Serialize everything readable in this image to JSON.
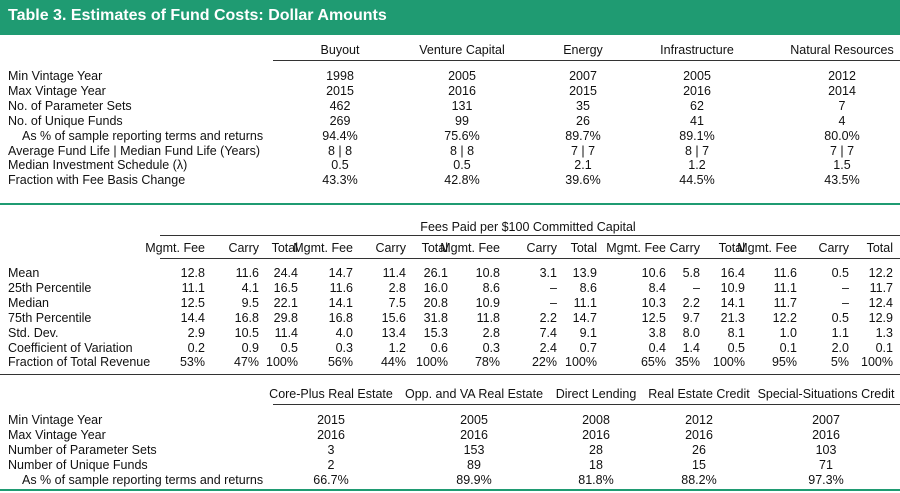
{
  "title": "Table 3.  Estimates of Fund Costs: Dollar Amounts",
  "panel1": {
    "columns": [
      "Buyout",
      "Venture Capital",
      "Energy",
      "Infrastructure",
      "Natural Resources"
    ],
    "rows": [
      {
        "label": "Min Vintage Year",
        "values": [
          "1998",
          "2005",
          "2007",
          "2005",
          "2012"
        ]
      },
      {
        "label": "Max Vintage Year",
        "values": [
          "2015",
          "2016",
          "2015",
          "2016",
          "2014"
        ]
      },
      {
        "label": "No. of Parameter Sets",
        "values": [
          "462",
          "131",
          "35",
          "62",
          "7"
        ]
      },
      {
        "label": "No. of Unique Funds",
        "values": [
          "269",
          "99",
          "26",
          "41",
          "4"
        ]
      },
      {
        "label": "As % of sample reporting terms and returns",
        "indent": true,
        "values": [
          "94.4%",
          "75.6%",
          "89.7%",
          "89.1%",
          "80.0%"
        ]
      },
      {
        "label": "Average Fund Life | Median Fund Life (Years)",
        "values": [
          "8 | 8",
          "8 | 8",
          "7 | 7",
          "8 | 7",
          "7 | 7"
        ]
      },
      {
        "label": "Median Investment Schedule (λ)",
        "values": [
          "0.5",
          "0.5",
          "2.1",
          "1.2",
          "1.5"
        ]
      },
      {
        "label": "Fraction with Fee Basis Change",
        "values": [
          "43.3%",
          "42.8%",
          "39.6%",
          "44.5%",
          "43.5%"
        ]
      }
    ]
  },
  "panel2": {
    "header": "Fees Paid per $100 Committed Capital",
    "subheaders": [
      "Mgmt. Fee",
      "Carry",
      "Total"
    ],
    "rows": [
      {
        "label": "Mean",
        "values": [
          "12.8",
          "11.6",
          "24.4",
          "14.7",
          "11.4",
          "26.1",
          "10.8",
          "3.1",
          "13.9",
          "10.6",
          "5.8",
          "16.4",
          "11.6",
          "0.5",
          "12.2"
        ]
      },
      {
        "label": "25th Percentile",
        "values": [
          "11.1",
          "4.1",
          "16.5",
          "11.6",
          "2.8",
          "16.0",
          "8.6",
          "–",
          "8.6",
          "8.4",
          "–",
          "10.9",
          "11.1",
          "–",
          "11.7"
        ]
      },
      {
        "label": "Median",
        "values": [
          "12.5",
          "9.5",
          "22.1",
          "14.1",
          "7.5",
          "20.8",
          "10.9",
          "–",
          "11.1",
          "10.3",
          "2.2",
          "14.1",
          "11.7",
          "–",
          "12.4"
        ]
      },
      {
        "label": "75th Percentile",
        "values": [
          "14.4",
          "16.8",
          "29.8",
          "16.8",
          "15.6",
          "31.8",
          "11.8",
          "2.2",
          "14.7",
          "12.5",
          "9.7",
          "21.3",
          "12.2",
          "0.5",
          "12.9"
        ]
      },
      {
        "label": "Std. Dev.",
        "values": [
          "2.9",
          "10.5",
          "11.4",
          "4.0",
          "13.4",
          "15.3",
          "2.8",
          "7.4",
          "9.1",
          "3.8",
          "8.0",
          "8.1",
          "1.0",
          "1.1",
          "1.3"
        ]
      },
      {
        "label": "Coefficient of Variation",
        "values": [
          "0.2",
          "0.9",
          "0.5",
          "0.3",
          "1.2",
          "0.6",
          "0.3",
          "2.4",
          "0.7",
          "0.4",
          "1.4",
          "0.5",
          "0.1",
          "2.0",
          "0.1"
        ]
      },
      {
        "label": "Fraction of Total Revenue",
        "values": [
          "53%",
          "47%",
          "100%",
          "56%",
          "44%",
          "100%",
          "78%",
          "22%",
          "100%",
          "65%",
          "35%",
          "100%",
          "95%",
          "5%",
          "100%"
        ]
      }
    ]
  },
  "panel3": {
    "columns": [
      "Core-Plus Real Estate",
      "Opp. and VA Real Estate",
      "Direct Lending",
      "Real Estate Credit",
      "Special-Situations Credit"
    ],
    "rows": [
      {
        "label": "Min Vintage Year",
        "values": [
          "2015",
          "2005",
          "2008",
          "2012",
          "2007"
        ]
      },
      {
        "label": "Max Vintage Year",
        "values": [
          "2016",
          "2016",
          "2016",
          "2016",
          "2016"
        ]
      },
      {
        "label": "Number of Parameter Sets",
        "values": [
          "3",
          "153",
          "28",
          "26",
          "103"
        ]
      },
      {
        "label": "Number of Unique Funds",
        "values": [
          "2",
          "89",
          "18",
          "15",
          "71"
        ]
      },
      {
        "label": "As % of sample reporting terms and returns",
        "indent": true,
        "values": [
          "66.7%",
          "89.9%",
          "81.8%",
          "88.2%",
          "97.3%"
        ]
      }
    ]
  }
}
